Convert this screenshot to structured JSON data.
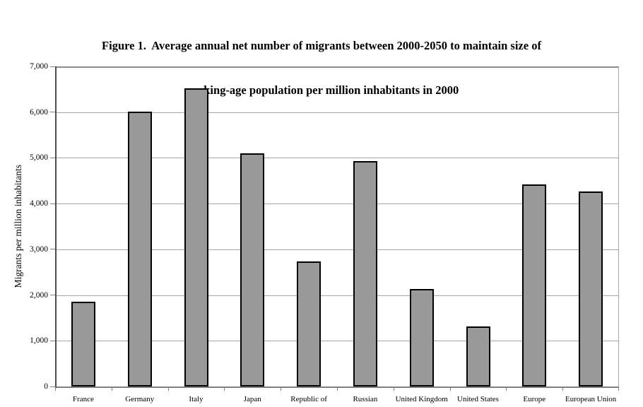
{
  "header": {
    "title_line1": "Figure 1.  Average annual net number of migrants between 2000-2050 to maintain size of",
    "title_line2": "working-age population per million inhabitants in 2000"
  },
  "chart_data": {
    "type": "bar",
    "title": "Figure 1. Average annual net number of migrants between 2000-2050 to maintain size of working-age population per million inhabitants in 2000",
    "categories": [
      "France",
      "Germany",
      "Italy",
      "Japan",
      "Republic of",
      "Russian",
      "United Kingdom",
      "United States",
      "Europe",
      "European Union"
    ],
    "values": [
      1854,
      6009,
      6527,
      5103,
      2736,
      4935,
      2132,
      1315,
      4427,
      4262
    ],
    "xlabel": "",
    "ylabel": "Migrants per million inhabitants",
    "ylim": [
      0,
      7000
    ],
    "ytick_interval": 1000,
    "ytick_labels": [
      "0",
      "1,000",
      "2,000",
      "3,000",
      "4,000",
      "5,000",
      "6,000",
      "7,000"
    ],
    "grid": "horizontal",
    "legend": "none",
    "colors": {
      "bar_fill": "#999999",
      "bar_border": "#000000",
      "grid_line": "#a6a6a6",
      "axis_line": "#4d4d4d",
      "frame_line": "#8c8c8c",
      "background": "#ffffff"
    }
  }
}
